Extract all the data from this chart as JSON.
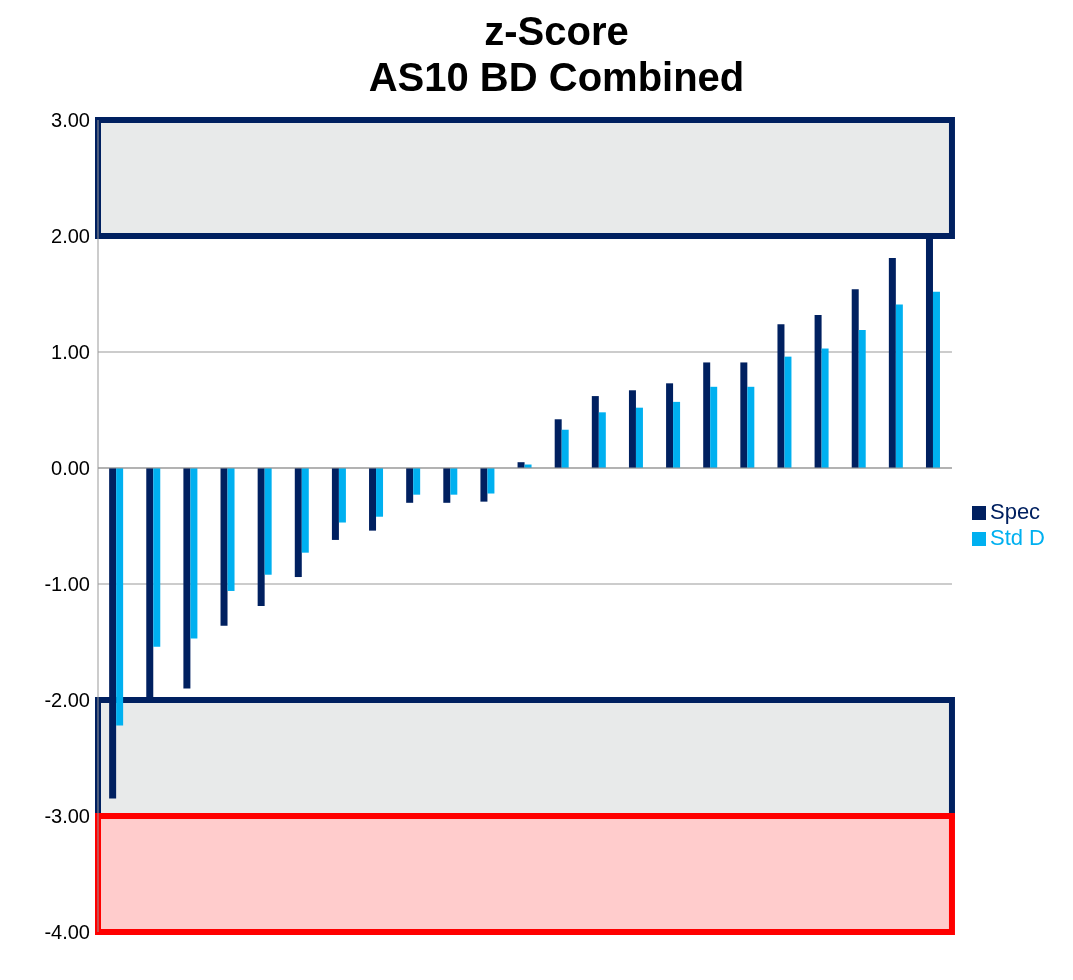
{
  "chart_data": {
    "type": "bar",
    "title": "z-Score\nAS10 BD Combined",
    "categories": [
      null,
      null,
      null,
      null,
      null,
      null,
      null,
      null,
      null,
      null,
      null,
      null,
      null,
      null,
      null,
      null,
      null,
      null,
      null,
      null,
      null,
      null,
      null
    ],
    "series": [
      {
        "name": "Spec",
        "color": "#002060",
        "values": [
          -2.85,
          -2.0,
          -1.9,
          -1.36,
          -1.19,
          -0.94,
          -0.62,
          -0.54,
          -0.3,
          -0.3,
          -0.29,
          0.05,
          0.42,
          0.62,
          0.67,
          0.73,
          0.91,
          0.91,
          1.24,
          1.32,
          1.54,
          1.81,
          2.0
        ]
      },
      {
        "name": "Std D",
        "color": "#00b0f0",
        "values": [
          -2.22,
          -1.54,
          -1.47,
          -1.06,
          -0.92,
          -0.73,
          -0.47,
          -0.42,
          -0.23,
          -0.23,
          -0.22,
          0.03,
          0.33,
          0.48,
          0.52,
          0.57,
          0.7,
          0.7,
          0.96,
          1.03,
          1.19,
          1.41,
          1.52
        ]
      }
    ],
    "ylim": [
      -4,
      3
    ],
    "yticks": [
      {
        "value": -4,
        "label": "-4.00"
      },
      {
        "value": -3,
        "label": "-3.00"
      },
      {
        "value": -2,
        "label": "-2.00"
      },
      {
        "value": -1,
        "label": "-1.00"
      },
      {
        "value": 0,
        "label": "0.00"
      },
      {
        "value": 1,
        "label": "1.00"
      },
      {
        "value": 2,
        "label": "2.00"
      },
      {
        "value": 3,
        "label": "3.00"
      }
    ],
    "bands": [
      {
        "axis": "y",
        "from": 2,
        "to": 3,
        "color": "#e8eaea"
      },
      {
        "axis": "y",
        "from": -3,
        "to": -2,
        "color": "#e8eaea"
      },
      {
        "axis": "y",
        "from": -4,
        "to": -3,
        "color": "#ffcccc"
      }
    ],
    "grid": "y",
    "legend": "right",
    "tick_labels": "y"
  }
}
